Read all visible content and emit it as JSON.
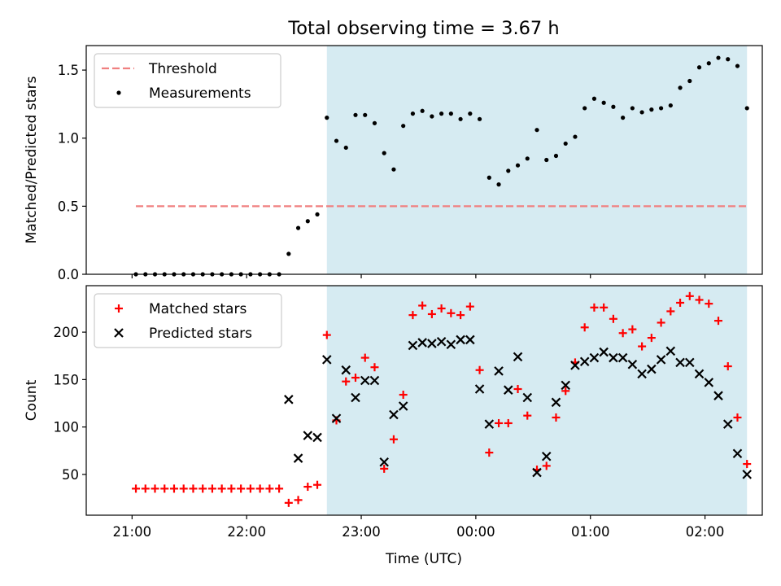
{
  "chart_data": {
    "title": "Total observing time = 3.67 h",
    "shaded_interval": [
      "22:42",
      "02:22"
    ],
    "shade_color": "#add8e6",
    "x_axis": {
      "label": "Time (UTC)",
      "ticks": [
        "21:00",
        "22:00",
        "23:00",
        "00:00",
        "01:00",
        "02:00"
      ],
      "tick_minutes": [
        0,
        60,
        120,
        180,
        240,
        300
      ]
    },
    "panels": [
      {
        "type": "scatter",
        "ylabel": "Matched/Predicted stars",
        "ylim": [
          0,
          1.68
        ],
        "yticks": [
          "0.0",
          "0.5",
          "1.0",
          "1.5"
        ],
        "ytick_values": [
          0,
          0.5,
          1.0,
          1.5
        ],
        "legend": {
          "placement": "top-left",
          "entries": [
            "Threshold",
            "Measurements"
          ]
        },
        "series": [
          {
            "name": "Threshold",
            "kind": "dashed-line",
            "color": "#f08080",
            "x": [
              "21:02",
              "02:22"
            ],
            "y": [
              0.5,
              0.5
            ]
          },
          {
            "name": "Measurements",
            "kind": "dot",
            "color": "#000000",
            "x": [
              "21:02",
              "21:07",
              "21:12",
              "21:17",
              "21:22",
              "21:27",
              "21:32",
              "21:37",
              "21:42",
              "21:47",
              "21:52",
              "21:57",
              "22:02",
              "22:07",
              "22:12",
              "22:17",
              "22:22",
              "22:27",
              "22:32",
              "22:37",
              "22:42",
              "22:47",
              "22:52",
              "22:57",
              "23:02",
              "23:07",
              "23:12",
              "23:17",
              "23:22",
              "23:27",
              "23:32",
              "23:37",
              "23:42",
              "23:47",
              "23:52",
              "23:57",
              "00:02",
              "00:07",
              "00:12",
              "00:17",
              "00:22",
              "00:27",
              "00:32",
              "00:37",
              "00:42",
              "00:47",
              "00:52",
              "00:57",
              "01:02",
              "01:07",
              "01:12",
              "01:17",
              "01:22",
              "01:27",
              "01:32",
              "01:37",
              "01:42",
              "01:47",
              "01:52",
              "01:57",
              "02:02",
              "02:07",
              "02:12",
              "02:17",
              "02:22"
            ],
            "y": [
              0,
              0,
              0,
              0,
              0,
              0,
              0,
              0,
              0,
              0,
              0,
              0,
              0,
              0,
              0,
              0,
              0.15,
              0.34,
              0.39,
              0.44,
              1.15,
              0.98,
              0.93,
              1.17,
              1.17,
              1.11,
              0.89,
              0.77,
              1.09,
              1.18,
              1.2,
              1.16,
              1.18,
              1.18,
              1.14,
              1.18,
              1.14,
              0.71,
              0.66,
              0.76,
              0.8,
              0.85,
              1.06,
              0.84,
              0.87,
              0.96,
              1.01,
              1.22,
              1.29,
              1.26,
              1.23,
              1.15,
              1.22,
              1.19,
              1.21,
              1.22,
              1.24,
              1.37,
              1.42,
              1.52,
              1.55,
              1.59,
              1.58,
              1.53,
              1.22
            ]
          }
        ]
      },
      {
        "type": "scatter",
        "ylabel": "Count",
        "ylim": [
          7,
          249
        ],
        "yticks": [
          "50",
          "100",
          "150",
          "200"
        ],
        "ytick_values": [
          50,
          100,
          150,
          200
        ],
        "legend": {
          "placement": "top-left",
          "entries": [
            "Matched stars",
            "Predicted stars"
          ]
        },
        "series": [
          {
            "name": "Matched stars",
            "kind": "plus",
            "color": "#ff0000",
            "x": [
              "21:02",
              "21:07",
              "21:12",
              "21:17",
              "21:22",
              "21:27",
              "21:32",
              "21:37",
              "21:42",
              "21:47",
              "21:52",
              "21:57",
              "22:02",
              "22:07",
              "22:12",
              "22:17",
              "22:22",
              "22:27",
              "22:32",
              "22:37",
              "22:42",
              "22:47",
              "22:52",
              "22:57",
              "23:02",
              "23:07",
              "23:12",
              "23:17",
              "23:22",
              "23:27",
              "23:32",
              "23:37",
              "23:42",
              "23:47",
              "23:52",
              "23:57",
              "00:02",
              "00:07",
              "00:12",
              "00:17",
              "00:22",
              "00:27",
              "00:32",
              "00:37",
              "00:42",
              "00:47",
              "00:52",
              "00:57",
              "01:02",
              "01:07",
              "01:12",
              "01:17",
              "01:22",
              "01:27",
              "01:32",
              "01:37",
              "01:42",
              "01:47",
              "01:52",
              "01:57",
              "02:02",
              "02:07",
              "02:12",
              "02:17",
              "02:22"
            ],
            "y": [
              35,
              35,
              35,
              35,
              35,
              35,
              35,
              35,
              35,
              35,
              35,
              35,
              35,
              35,
              35,
              35,
              20,
              23,
              37,
              39,
              197,
              107,
              148,
              152,
              173,
              163,
              56,
              87,
              134,
              218,
              228,
              219,
              225,
              220,
              218,
              227,
              160,
              73,
              104,
              104,
              140,
              112,
              55,
              59,
              110,
              138,
              168,
              205,
              226,
              226,
              214,
              199,
              203,
              185,
              194,
              210,
              222,
              231,
              238,
              234,
              230,
              212,
              164,
              110,
              61
            ]
          },
          {
            "name": "Predicted stars",
            "kind": "x",
            "color": "#000000",
            "x": [
              "22:22",
              "22:27",
              "22:32",
              "22:37",
              "22:42",
              "22:47",
              "22:52",
              "22:57",
              "23:02",
              "23:07",
              "23:12",
              "23:17",
              "23:22",
              "23:27",
              "23:32",
              "23:37",
              "23:42",
              "23:47",
              "23:52",
              "23:57",
              "00:02",
              "00:07",
              "00:12",
              "00:17",
              "00:22",
              "00:27",
              "00:32",
              "00:37",
              "00:42",
              "00:47",
              "00:52",
              "00:57",
              "01:02",
              "01:07",
              "01:12",
              "01:17",
              "01:22",
              "01:27",
              "01:32",
              "01:37",
              "01:42",
              "01:47",
              "01:52",
              "01:57",
              "02:02",
              "02:07",
              "02:12",
              "02:17",
              "02:22"
            ],
            "y": [
              129,
              67,
              91,
              89,
              171,
              109,
              160,
              131,
              149,
              149,
              63,
              113,
              122,
              186,
              189,
              188,
              190,
              187,
              192,
              192,
              140,
              103,
              159,
              139,
              174,
              131,
              52,
              69,
              126,
              144,
              165,
              169,
              173,
              179,
              173,
              173,
              166,
              156,
              161,
              171,
              180,
              168,
              168,
              156,
              147,
              133,
              103,
              72,
              50
            ]
          }
        ]
      }
    ]
  }
}
